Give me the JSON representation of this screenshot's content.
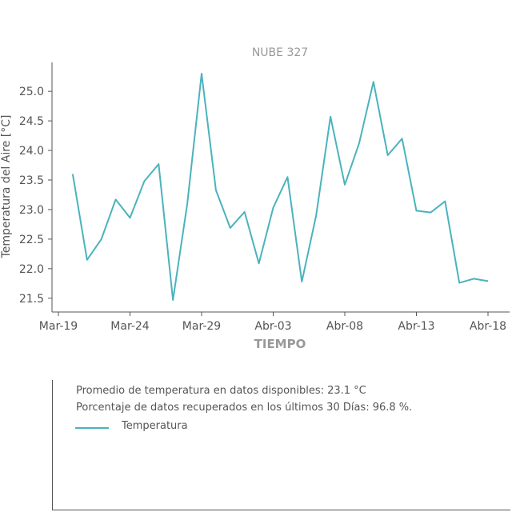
{
  "chart_data": {
    "type": "line",
    "title": "NUBE 327",
    "xlabel": "TIEMPO",
    "ylabel": "Temperatura del Aire [°C]",
    "ylim": [
      21.3,
      25.5
    ],
    "yticks": [
      21.5,
      22.0,
      22.5,
      23.0,
      23.5,
      24.0,
      24.5,
      25.0
    ],
    "xlim": [
      0,
      31.5
    ],
    "xticks": [
      {
        "pos": 0,
        "label": "Mar-19"
      },
      {
        "pos": 5,
        "label": "Mar-24"
      },
      {
        "pos": 10,
        "label": "Mar-29"
      },
      {
        "pos": 15,
        "label": "Abr-03"
      },
      {
        "pos": 20,
        "label": "Abr-08"
      },
      {
        "pos": 25,
        "label": "Abr-13"
      },
      {
        "pos": 30,
        "label": "Abr-18"
      }
    ],
    "grid": false,
    "color": "#4ab3bd",
    "series": [
      {
        "name": "Temperatura",
        "x": [
          1,
          2,
          3,
          4,
          5,
          6,
          7,
          8,
          9,
          10,
          11,
          12,
          13,
          14,
          15,
          16,
          17,
          18,
          19,
          20,
          21,
          22,
          23,
          24,
          25,
          26,
          27,
          28,
          29,
          30
        ],
        "values": [
          23.6,
          22.15,
          22.5,
          23.17,
          22.86,
          23.48,
          23.77,
          21.47,
          23.1,
          25.3,
          23.33,
          22.69,
          22.96,
          22.09,
          23.03,
          23.55,
          21.78,
          22.9,
          24.57,
          23.42,
          24.12,
          25.16,
          23.92,
          24.2,
          22.98,
          22.95,
          23.14,
          21.76,
          21.83,
          21.79
        ]
      }
    ]
  },
  "info": {
    "average_text": "Promedio de temperatura en datos disponibles: 23.1 °C",
    "recovered_text": "Porcentaje de datos recuperados en los últimos 30 Días: 96.8 %.",
    "legend_label": "Temperatura"
  }
}
